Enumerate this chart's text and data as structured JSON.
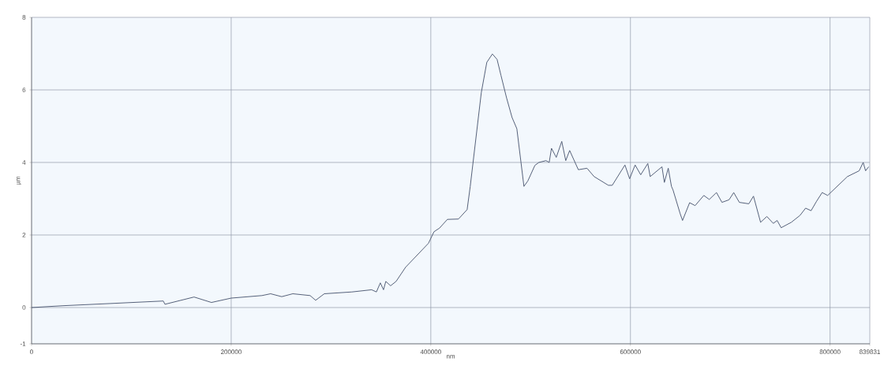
{
  "chart_data": {
    "type": "line",
    "xlabel": "nm",
    "ylabel": "µm",
    "x": [
      0,
      31600,
      78300,
      132000,
      133600,
      162800,
      180200,
      200000,
      230800,
      239500,
      250600,
      261700,
      279100,
      284600,
      293300,
      320900,
      340700,
      345500,
      349400,
      352600,
      354900,
      359700,
      365200,
      374700,
      397600,
      403200,
      408700,
      416600,
      427700,
      436400,
      439500,
      450600,
      456100,
      461700,
      466400,
      470300,
      475900,
      481400,
      486200,
      493300,
      497200,
      504300,
      508300,
      515400,
      518600,
      520900,
      525700,
      531200,
      535200,
      539100,
      547800,
      556500,
      563600,
      577900,
      581800,
      594500,
      599200,
      604700,
      610300,
      617400,
      619800,
      631600,
      634000,
      637900,
      641100,
      642700,
      649800,
      652200,
      659300,
      664800,
      673500,
      679000,
      686200,
      691700,
      698800,
      703500,
      709100,
      718600,
      723300,
      730400,
      736700,
      743100,
      747000,
      751000,
      761200,
      769900,
      775500,
      781000,
      786500,
      792100,
      797600,
      817400,
      829200,
      833200,
      835600,
      838700
    ],
    "series": [
      {
        "color": "#4a5670",
        "values": [
          0,
          0.05,
          0.11,
          0.18,
          0.09,
          0.29,
          0.14,
          0.26,
          0.33,
          0.38,
          0.3,
          0.38,
          0.33,
          0.2,
          0.38,
          0.43,
          0.49,
          0.43,
          0.68,
          0.49,
          0.72,
          0.6,
          0.72,
          1.11,
          1.77,
          2.09,
          2.19,
          2.43,
          2.44,
          2.7,
          3.34,
          5.93,
          6.76,
          6.99,
          6.84,
          6.4,
          5.78,
          5.24,
          4.93,
          3.34,
          3.49,
          3.92,
          4.0,
          4.05,
          4.0,
          4.39,
          4.14,
          4.58,
          4.05,
          4.33,
          3.8,
          3.84,
          3.61,
          3.37,
          3.37,
          3.93,
          3.55,
          3.93,
          3.66,
          3.97,
          3.61,
          3.88,
          3.45,
          3.84,
          3.34,
          3.24,
          2.59,
          2.4,
          2.89,
          2.81,
          3.09,
          2.98,
          3.17,
          2.9,
          2.97,
          3.17,
          2.9,
          2.86,
          3.07,
          2.35,
          2.51,
          2.32,
          2.4,
          2.2,
          2.35,
          2.54,
          2.74,
          2.67,
          2.93,
          3.17,
          3.09,
          3.61,
          3.77,
          4.0,
          3.77,
          3.88
        ]
      }
    ],
    "xlim": [
      0,
      839831
    ],
    "ylim": [
      -1,
      8
    ],
    "xticks": [
      0,
      200000,
      400000,
      600000,
      800000,
      839831
    ],
    "yticks": [
      -1,
      0,
      2,
      4,
      6,
      8
    ],
    "grid": true
  }
}
